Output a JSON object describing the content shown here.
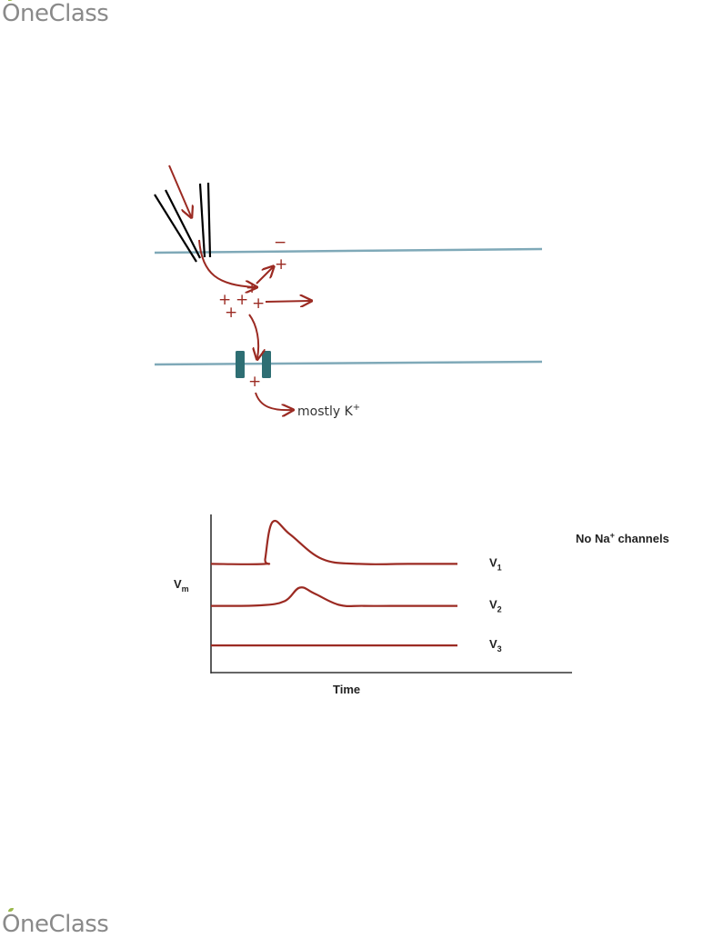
{
  "brand": {
    "name": "OneClass",
    "color": "#8a8a8a",
    "leaf_color": "#9ab84b"
  },
  "diagram": {
    "membrane_color": "#7fa9b8",
    "arrow_color": "#9b2a22",
    "channel_color": "#2e6e73",
    "electrode_color": "#000000",
    "minus_label": "−",
    "plus_label": "+",
    "ion_label": "mostly K",
    "ion_superscript": "+"
  },
  "chart": {
    "y_axis_label_main": "V",
    "y_axis_label_sub": "m",
    "x_axis_label": "Time",
    "note_prefix": "No Na",
    "note_superscript": "+",
    "note_suffix": " channels"
  },
  "chart_data": {
    "type": "line",
    "xlabel": "Time",
    "ylabel": "Vm",
    "line_color": "#9b2a22",
    "series": [
      {
        "name": "V1",
        "label_main": "V",
        "label_sub": "1",
        "x": [
          0,
          0.22,
          0.22,
          0.25,
          0.32,
          0.45,
          0.6,
          0.8,
          1.0
        ],
        "y": [
          2.2,
          2.2,
          2.3,
          3.05,
          2.8,
          2.3,
          2.2,
          2.2,
          2.2
        ]
      },
      {
        "name": "V2",
        "label_main": "V",
        "label_sub": "2",
        "x": [
          0,
          0.2,
          0.3,
          0.36,
          0.42,
          0.52,
          0.62,
          0.8,
          1.0
        ],
        "y": [
          1.35,
          1.36,
          1.45,
          1.72,
          1.6,
          1.37,
          1.35,
          1.35,
          1.35
        ]
      },
      {
        "name": "V3",
        "label_main": "V",
        "label_sub": "3",
        "x": [
          0,
          1.0
        ],
        "y": [
          0.55,
          0.55
        ]
      }
    ]
  }
}
